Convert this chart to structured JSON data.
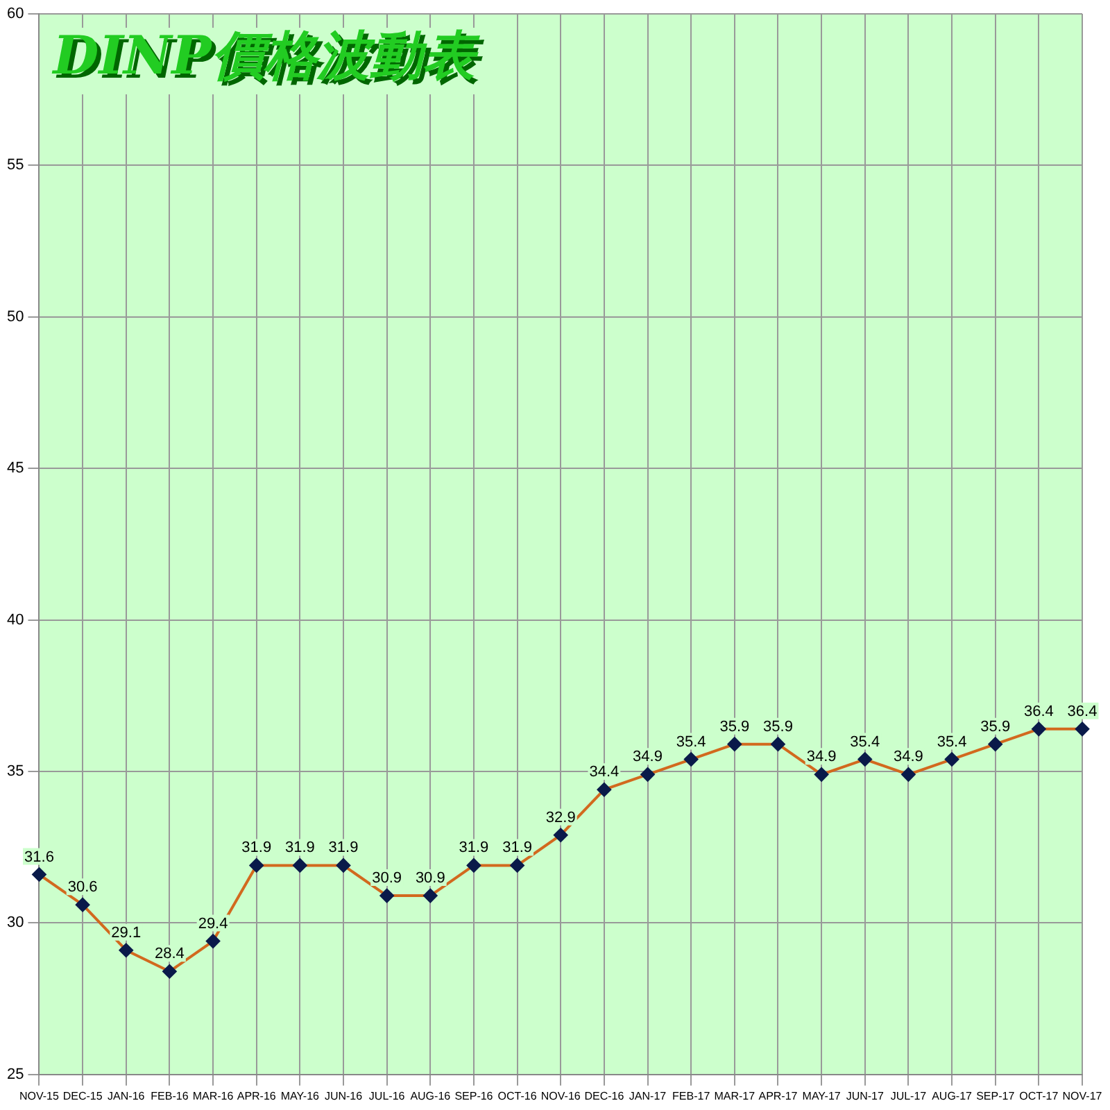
{
  "chart_data": {
    "type": "line",
    "title": "DINP價格波動表",
    "categories": [
      "NOV-15",
      "DEC-15",
      "JAN-16",
      "FEB-16",
      "MAR-16",
      "APR-16",
      "MAY-16",
      "JUN-16",
      "JUL-16",
      "AUG-16",
      "SEP-16",
      "OCT-16",
      "NOV-16",
      "DEC-16",
      "JAN-17",
      "FEB-17",
      "MAR-17",
      "APR-17",
      "MAY-17",
      "JUN-17",
      "JUL-17",
      "AUG-17",
      "SEP-17",
      "OCT-17",
      "NOV-17"
    ],
    "series": [
      {
        "color": "#d2691e",
        "values": [
          31.6,
          30.6,
          29.1,
          28.4,
          29.4,
          31.9,
          31.9,
          31.9,
          30.9,
          30.9,
          31.9,
          31.9,
          32.9,
          34.4,
          34.9,
          35.4,
          35.9,
          35.9,
          34.9,
          35.4,
          34.9,
          35.4,
          35.9,
          36.4,
          36.4
        ]
      }
    ],
    "ylim": [
      25,
      60
    ],
    "yticks": [
      25,
      30,
      35,
      40,
      45,
      50,
      55,
      60
    ],
    "grid": true,
    "legend": false,
    "marker": "diamond",
    "line_style": "solid",
    "data_labels": true
  }
}
